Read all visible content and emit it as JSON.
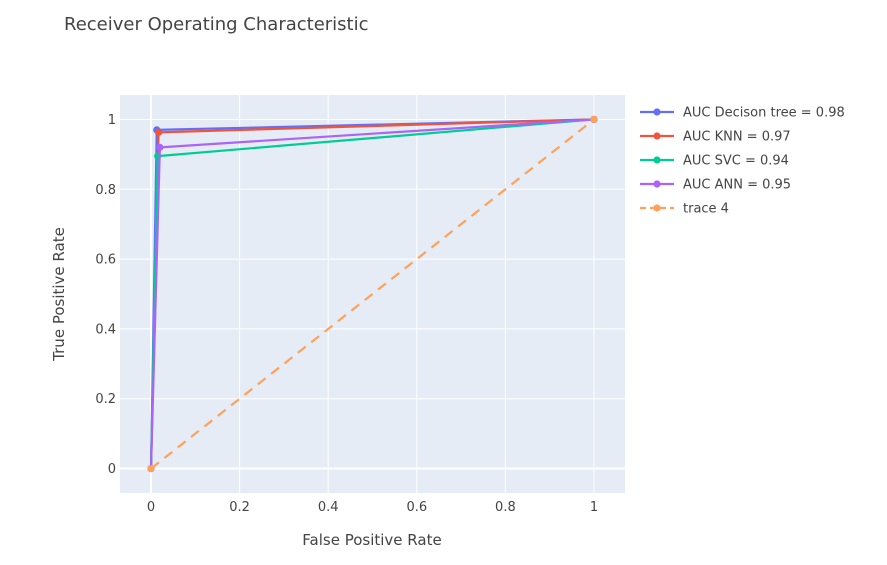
{
  "chart_data": {
    "type": "line",
    "title": "Receiver Operating Characteristic",
    "xlabel": "False Positive Rate",
    "ylabel": "True Positive Rate",
    "xlim": [
      -0.07,
      1.07
    ],
    "ylim": [
      -0.07,
      1.07
    ],
    "x_ticks": [
      0,
      0.2,
      0.4,
      0.6,
      0.8,
      1
    ],
    "x_tick_labels": [
      "0",
      "0.2",
      "0.4",
      "0.6",
      "0.8",
      "1"
    ],
    "y_ticks": [
      0,
      0.2,
      0.4,
      0.6,
      0.8,
      1
    ],
    "y_tick_labels": [
      "0",
      "0.2",
      "0.4",
      "0.6",
      "0.8",
      "1"
    ],
    "grid": true,
    "legend_position": "right",
    "plot_background": "#e5ecf6",
    "series": [
      {
        "name": "AUC Decison tree = 0.98",
        "color": "#636efa",
        "dash": "solid",
        "x": [
          0,
          0.013,
          1
        ],
        "y": [
          0,
          0.97,
          1
        ]
      },
      {
        "name": "AUC KNN = 0.97",
        "color": "#ef553b",
        "dash": "solid",
        "x": [
          0,
          0.017,
          1
        ],
        "y": [
          0,
          0.963,
          1
        ]
      },
      {
        "name": "AUC SVC = 0.94",
        "color": "#00cc96",
        "dash": "solid",
        "x": [
          0,
          0.015,
          1
        ],
        "y": [
          0,
          0.895,
          1
        ]
      },
      {
        "name": "AUC ANN = 0.95",
        "color": "#ab63fa",
        "dash": "solid",
        "x": [
          0,
          0.02,
          1
        ],
        "y": [
          0,
          0.92,
          1
        ]
      },
      {
        "name": "trace 4",
        "color": "#ffa15a",
        "dash": "dash",
        "x": [
          0,
          1
        ],
        "y": [
          0,
          1
        ]
      }
    ]
  }
}
